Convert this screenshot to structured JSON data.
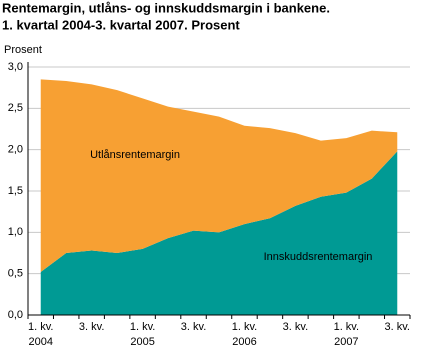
{
  "chart_data": {
    "type": "stacked-area",
    "title": "Rentemargin, utlåns- og innskuddsmargin i bankene.",
    "subtitle": "1. kvartal 2004-3. kvartal 2007. Prosent",
    "y_label": "Prosent",
    "categories": [
      "1. kv.",
      null,
      "3. kv.",
      null,
      "1. kv.",
      null,
      "3. kv.",
      null,
      "1. kv.",
      null,
      "3. kv.",
      null,
      "1. kv.",
      null,
      "3. kv."
    ],
    "category_years": [
      "2004",
      null,
      null,
      null,
      "2005",
      null,
      null,
      null,
      "2006",
      null,
      null,
      null,
      "2007",
      null,
      null
    ],
    "series": [
      {
        "name": "Innskuddsrentemargin",
        "color": "#009a94",
        "values": [
          0.52,
          0.75,
          0.78,
          0.75,
          0.8,
          0.93,
          1.02,
          1.0,
          1.1,
          1.17,
          1.32,
          1.43,
          1.48,
          1.65,
          1.98
        ]
      },
      {
        "name": "Utlånsrentemargin",
        "color": "#f7a033",
        "values": [
          2.33,
          2.08,
          2.01,
          1.97,
          1.82,
          1.59,
          1.44,
          1.4,
          1.19,
          1.09,
          0.88,
          0.68,
          0.66,
          0.58,
          0.23
        ]
      }
    ],
    "ylim": [
      0,
      3
    ],
    "yticks": [
      {
        "value": 0,
        "label": "0,0"
      },
      {
        "value": 0.5,
        "label": "0,5"
      },
      {
        "value": 1,
        "label": "1,0"
      },
      {
        "value": 1.5,
        "label": "1,5"
      },
      {
        "value": 2,
        "label": "2,0"
      },
      {
        "value": 2.5,
        "label": "2,5"
      },
      {
        "value": 3,
        "label": "3,0"
      }
    ],
    "grid": true
  }
}
